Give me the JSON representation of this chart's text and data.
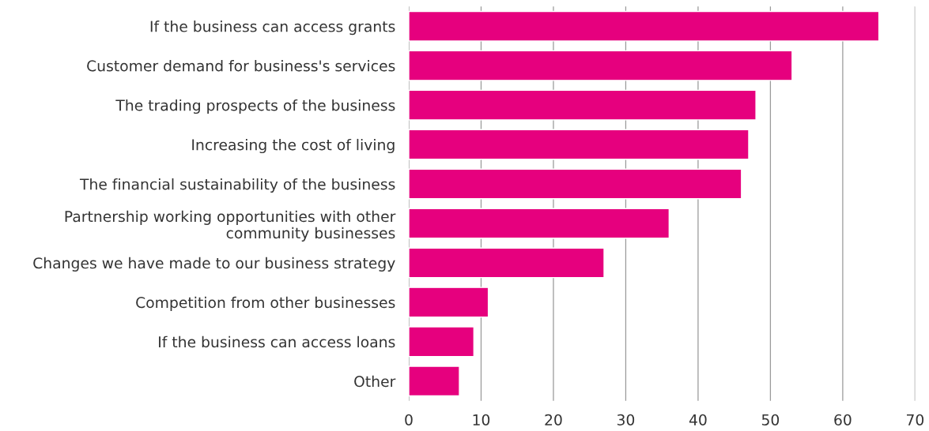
{
  "chart_data": {
    "type": "bar",
    "orientation": "horizontal",
    "categories": [
      "If the business can access grants",
      "Customer demand for business's services",
      "The trading prospects of the business",
      "Increasing the cost of living",
      "The financial sustainability of the business",
      "Partnership working opportunities with other\ncommunity businesses",
      "Changes we have made to our business strategy",
      "Competition from other businesses",
      "If the business can access loans",
      "Other"
    ],
    "values": [
      65,
      53,
      48,
      47,
      46,
      36,
      27,
      11,
      9,
      7
    ],
    "color": "#e6007e",
    "xlim": [
      0,
      70
    ],
    "xticks": [
      0,
      10,
      20,
      30,
      40,
      50,
      60,
      70
    ],
    "grid": "x"
  }
}
